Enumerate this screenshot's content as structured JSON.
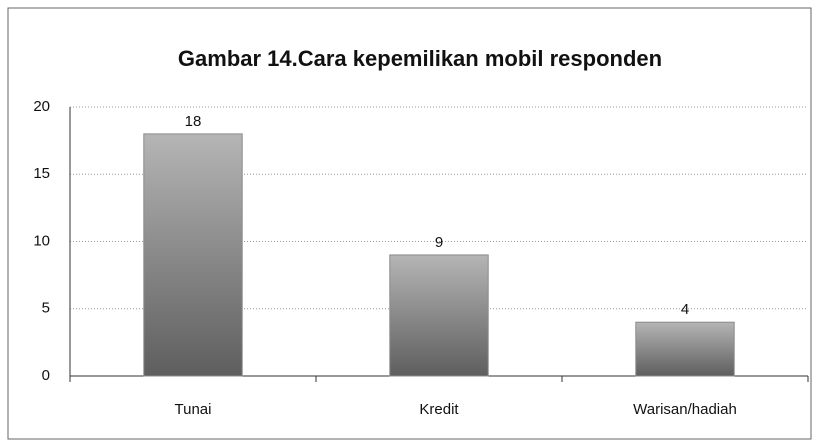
{
  "chart_data": {
    "type": "bar",
    "title": "Gambar 14.Cara kepemilikan mobil responden",
    "categories": [
      "Tunai",
      "Kredit",
      "Warisan/hadiah"
    ],
    "values": [
      18,
      9,
      4
    ],
    "color": "#8a8a8a",
    "ylim": [
      0,
      20
    ],
    "yticks": [
      0,
      5,
      10,
      15,
      20
    ],
    "grid": true
  }
}
